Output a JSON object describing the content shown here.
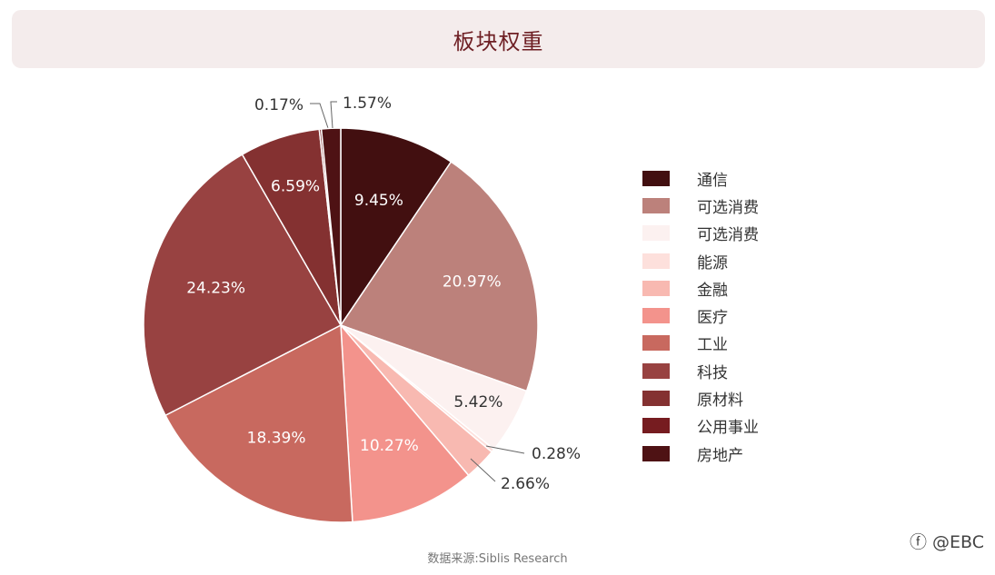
{
  "chart_data": {
    "type": "pie",
    "title": "板块权重",
    "slices": [
      {
        "label": "通信",
        "value": 9.45,
        "value_label": "9.45%",
        "color": "#420f10"
      },
      {
        "label": "可选消费",
        "value": 20.97,
        "value_label": "20.97%",
        "color": "#bc817b"
      },
      {
        "label": "可选消费",
        "value": 5.42,
        "value_label": "5.42%",
        "color": "#fcf1f0"
      },
      {
        "label": "能源",
        "value": 0.28,
        "value_label": "0.28%",
        "color": "#fde0dc"
      },
      {
        "label": "金融",
        "value": 2.66,
        "value_label": "2.66%",
        "color": "#f8b9b1"
      },
      {
        "label": "医疗",
        "value": 10.27,
        "value_label": "10.27%",
        "color": "#f3938c"
      },
      {
        "label": "工业",
        "value": 18.39,
        "value_label": "18.39%",
        "color": "#c8695f"
      },
      {
        "label": "科技",
        "value": 24.23,
        "value_label": "24.23%",
        "color": "#984241"
      },
      {
        "label": "原材料",
        "value": 6.59,
        "value_label": "6.59%",
        "color": "#843131"
      },
      {
        "label": "公用事业",
        "value": 0.17,
        "value_label": "0.17%",
        "color": "#761c20"
      },
      {
        "label": "房地产",
        "value": 1.57,
        "value_label": "1.57%",
        "color": "#4e1214"
      }
    ],
    "legend_position": "right"
  },
  "source": "数据来源:Siblis Research",
  "watermark": "@EBC"
}
